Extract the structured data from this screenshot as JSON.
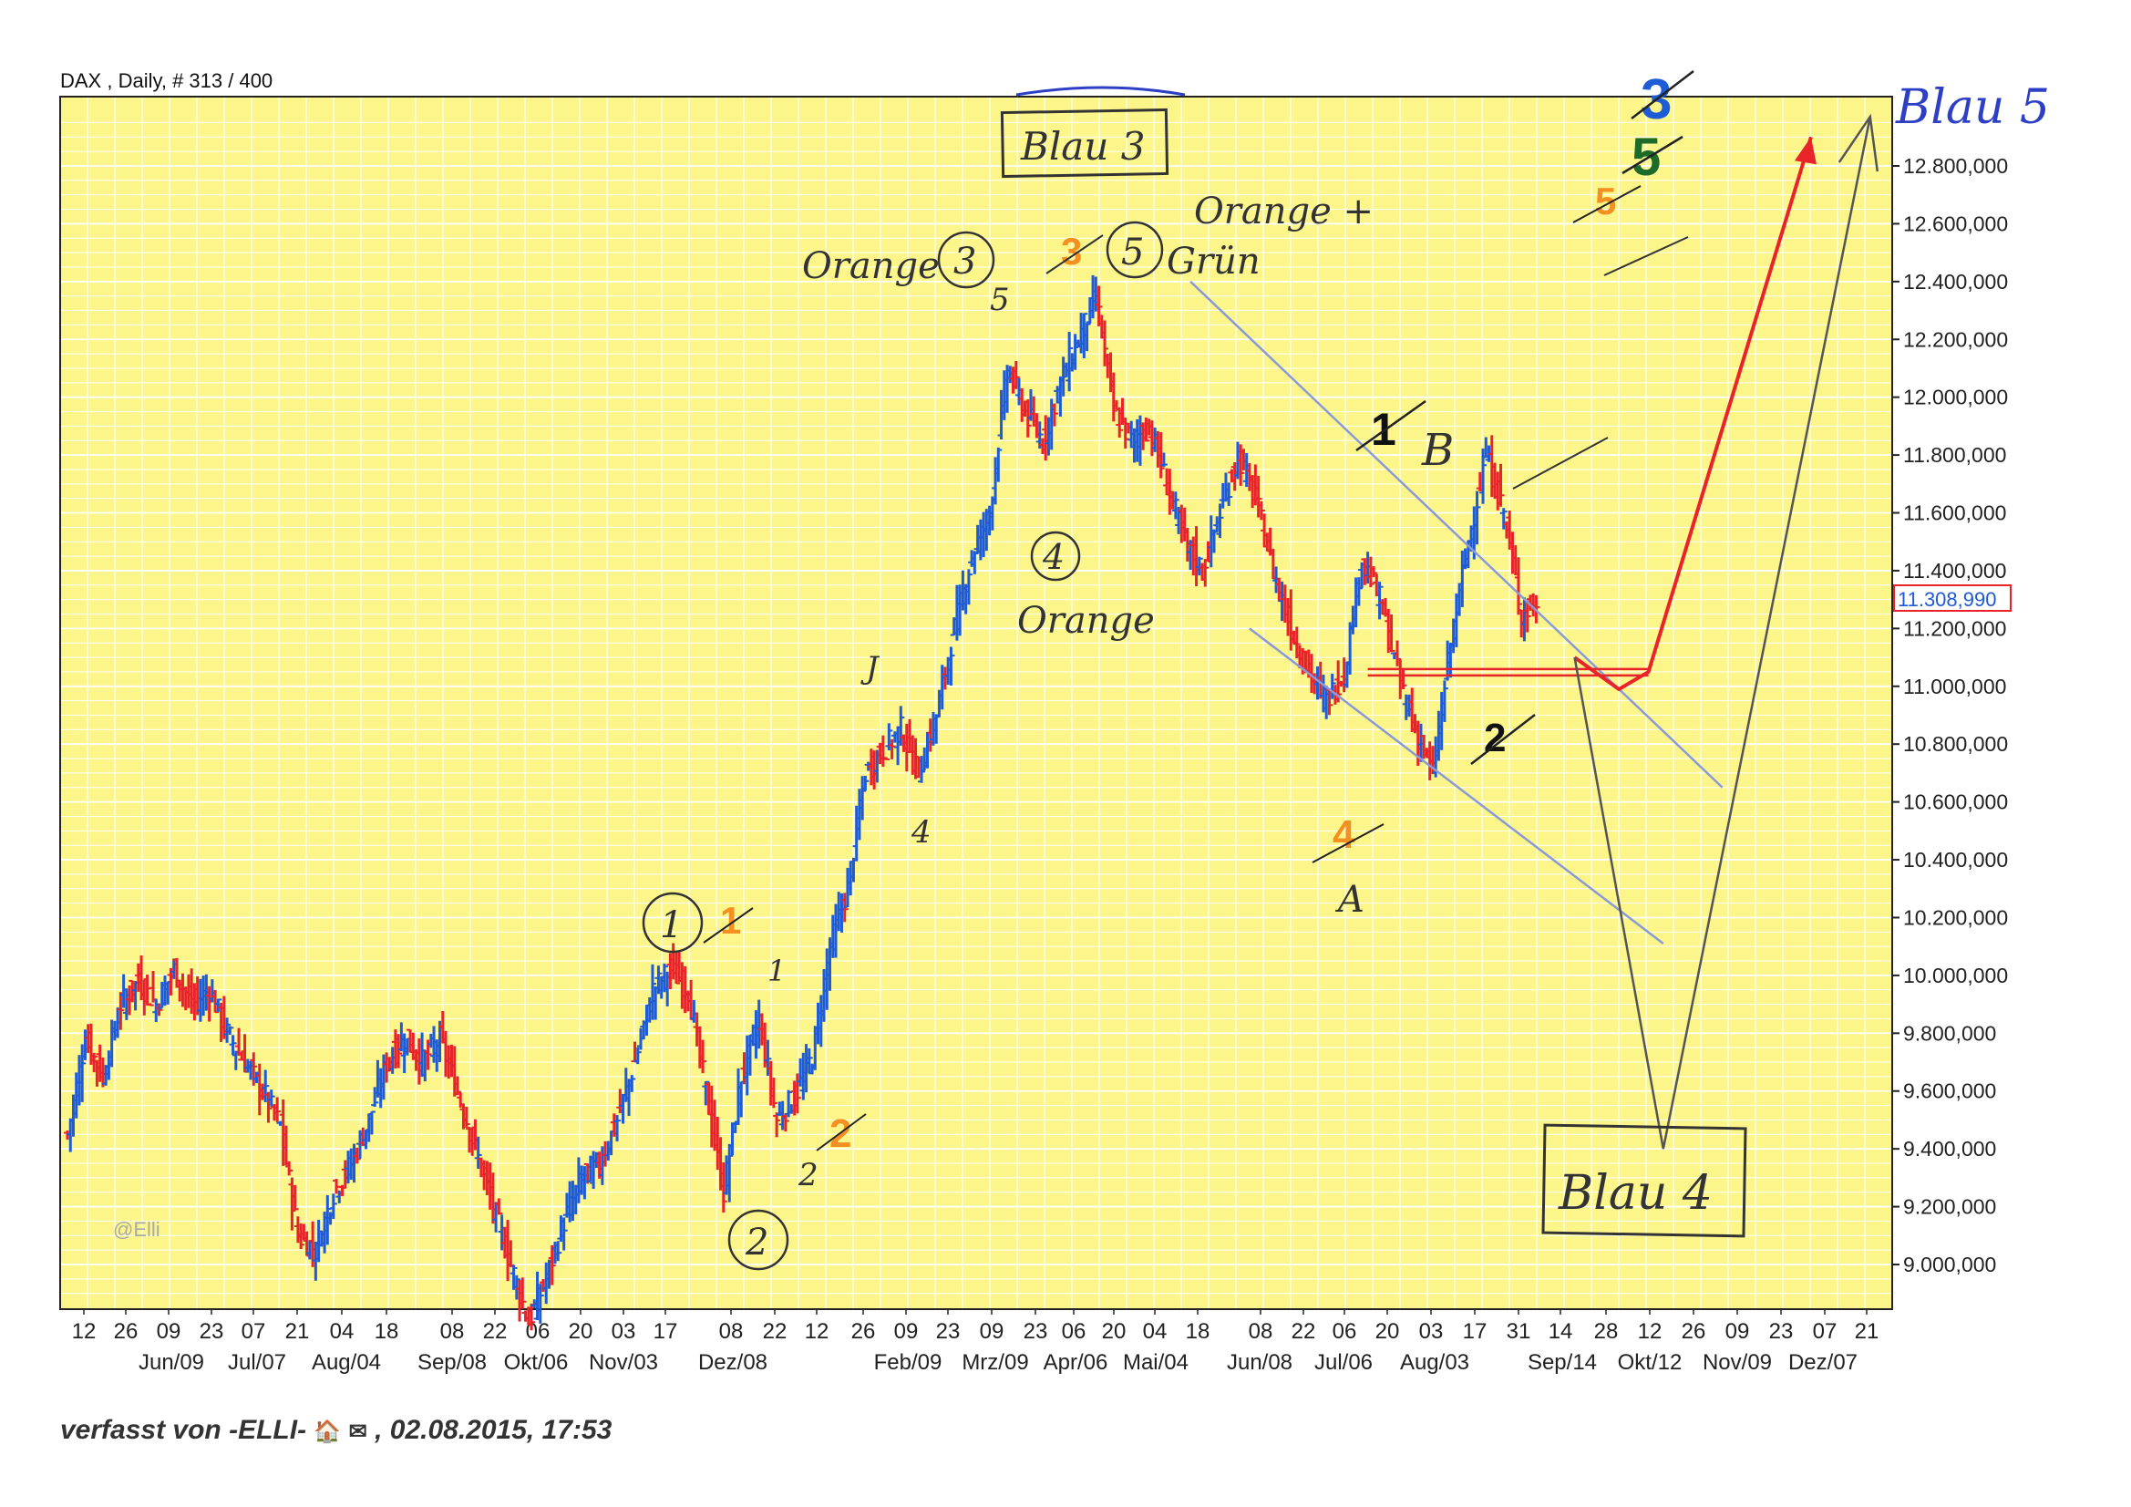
{
  "chart_data": {
    "type": "ohlc",
    "title": "DAX , Daily, # 313 / 400",
    "y_min": 8800,
    "y_max": 13000,
    "y_ticks": [
      9000,
      9200,
      9400,
      9600,
      9800,
      10000,
      10200,
      10400,
      10600,
      10800,
      11000,
      11200,
      11400,
      11600,
      11800,
      12000,
      12200,
      12400,
      12600,
      12800
    ],
    "y_tick_labels": [
      "9.000,000",
      "9.200,000",
      "9.400,000",
      "9.600,000",
      "9.800,000",
      "10.000,000",
      "10.200,000",
      "10.400,000",
      "10.600,000",
      "10.800,000",
      "11.000,000",
      "11.200,000",
      "11.400,000",
      "11.600,000",
      "11.800,000",
      "12.000,000",
      "12.200,000",
      "12.400,000",
      "12.600,000",
      "12.800,000"
    ],
    "current_price": 11308.99,
    "current_price_label": "11.308,990",
    "watermark": "@Elli",
    "x_day_labels": [
      "12",
      "26",
      "09",
      "23",
      "07",
      "21",
      "04",
      "18",
      "08",
      "22",
      "06",
      "20",
      "03",
      "17",
      "08",
      "22",
      "12",
      "26",
      "09",
      "23",
      "09",
      "23",
      "06",
      "20",
      "04",
      "18",
      "08",
      "22",
      "06",
      "20",
      "03",
      "17",
      "31",
      "14",
      "28",
      "12",
      "26",
      "09",
      "23",
      "07",
      "21"
    ],
    "x_month_labels": [
      "Jun/09",
      "Jul/07",
      "Aug/04",
      "Sep/08",
      "Okt/06",
      "Nov/03",
      "Dez/08",
      "Feb/09",
      "Mrz/09",
      "Apr/06",
      "Mai/04",
      "Jun/08",
      "Jul/06",
      "Aug/03",
      "Sep/14",
      "Okt/12",
      "Nov/09",
      "Dez/07"
    ],
    "series": [
      {
        "name": "up",
        "color": "#1e5bd6"
      },
      {
        "name": "down",
        "color": "#e8242a"
      }
    ],
    "price_path": [
      [
        0,
        9450
      ],
      [
        6,
        9780
      ],
      [
        12,
        9650
      ],
      [
        18,
        9900
      ],
      [
        24,
        9980
      ],
      [
        30,
        9900
      ],
      [
        36,
        10020
      ],
      [
        42,
        9900
      ],
      [
        48,
        9950
      ],
      [
        54,
        9800
      ],
      [
        60,
        9700
      ],
      [
        66,
        9600
      ],
      [
        72,
        9480
      ],
      [
        78,
        9100
      ],
      [
        84,
        9050
      ],
      [
        90,
        9250
      ],
      [
        96,
        9350
      ],
      [
        102,
        9500
      ],
      [
        108,
        9700
      ],
      [
        114,
        9780
      ],
      [
        120,
        9700
      ],
      [
        126,
        9780
      ],
      [
        132,
        9600
      ],
      [
        138,
        9400
      ],
      [
        144,
        9200
      ],
      [
        150,
        9000
      ],
      [
        156,
        8800
      ],
      [
        162,
        8950
      ],
      [
        168,
        9150
      ],
      [
        174,
        9300
      ],
      [
        180,
        9350
      ],
      [
        186,
        9500
      ],
      [
        192,
        9700
      ],
      [
        198,
        9950
      ],
      [
        204,
        10020
      ],
      [
        210,
        9950
      ],
      [
        216,
        9600
      ],
      [
        222,
        9250
      ],
      [
        228,
        9650
      ],
      [
        234,
        9850
      ],
      [
        240,
        9500
      ],
      [
        246,
        9580
      ],
      [
        252,
        9720
      ],
      [
        258,
        10100
      ],
      [
        264,
        10300
      ],
      [
        270,
        10700
      ],
      [
        276,
        10780
      ],
      [
        282,
        10850
      ],
      [
        288,
        10700
      ],
      [
        294,
        10900
      ],
      [
        300,
        11200
      ],
      [
        306,
        11450
      ],
      [
        312,
        11600
      ],
      [
        318,
        12100
      ],
      [
        324,
        11950
      ],
      [
        330,
        11850
      ],
      [
        336,
        12050
      ],
      [
        342,
        12200
      ],
      [
        348,
        12350
      ],
      [
        354,
        11950
      ],
      [
        360,
        11850
      ],
      [
        366,
        11900
      ],
      [
        372,
        11700
      ],
      [
        378,
        11500
      ],
      [
        384,
        11400
      ],
      [
        390,
        11600
      ],
      [
        396,
        11800
      ],
      [
        402,
        11650
      ],
      [
        408,
        11400
      ],
      [
        414,
        11200
      ],
      [
        420,
        11050
      ],
      [
        426,
        10950
      ],
      [
        432,
        11050
      ],
      [
        438,
        11450
      ],
      [
        444,
        11300
      ],
      [
        450,
        11050
      ],
      [
        456,
        10850
      ],
      [
        462,
        10700
      ],
      [
        468,
        11150
      ],
      [
        474,
        11500
      ],
      [
        480,
        11800
      ],
      [
        486,
        11600
      ],
      [
        492,
        11250
      ],
      [
        498,
        11300
      ]
    ],
    "channel": {
      "upper": {
        "from": [
          380,
          12400
        ],
        "to": [
          560,
          10650
        ]
      },
      "lower": {
        "from": [
          400,
          11200
        ],
        "to": [
          540,
          10110
        ]
      }
    },
    "projection_red": [
      [
        510,
        11100
      ],
      [
        525,
        10990
      ],
      [
        535,
        11050
      ],
      [
        590,
        12900
      ]
    ],
    "projection_gray": [
      [
        510,
        11100
      ],
      [
        540,
        9400
      ],
      [
        610,
        12970
      ]
    ],
    "support_level": 11050
  },
  "annotations": {
    "orange3": "Orange",
    "orange3_num": "3",
    "w5_small": "5",
    "w3_orange": "3",
    "w5_circle": "5",
    "orange_gruen_1": "Orange +",
    "orange_gruen_2": "Grün",
    "blau3": "Blau 3",
    "blau5": "Blau 5",
    "blau4": "Blau 4",
    "big3": "3",
    "green5": "5",
    "orange5": "5",
    "b_label": "B",
    "wave1_black": "1",
    "wave2_black": "2",
    "circle4": "4",
    "orange_label": "Orange",
    "small_j": "J",
    "small_4": "4",
    "orange4": "4",
    "a_label": "A",
    "circle1": "1",
    "orange1": "1",
    "small_1": "1",
    "orange2": "2",
    "small_2": "2",
    "circle2": "2"
  },
  "footer": {
    "text": "verfasst von -ELLI-",
    "suffix": ", 02.08.2015, 17:53",
    "icons": [
      "home-icon",
      "mail-icon"
    ]
  }
}
